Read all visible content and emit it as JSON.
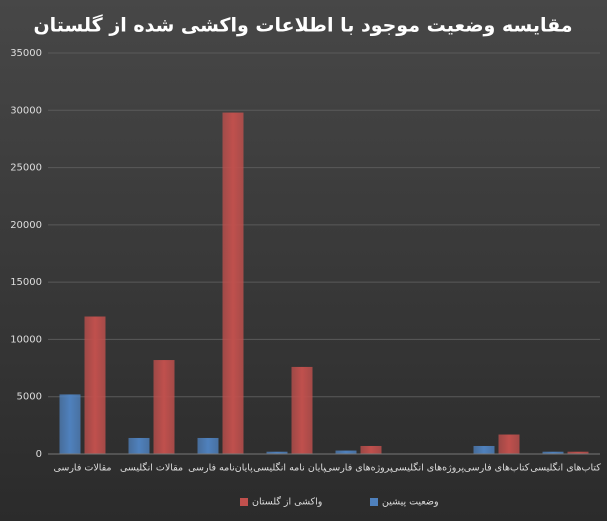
{
  "chart_data": {
    "type": "bar",
    "title": "مقایسه وضعیت موجود با اطلاعات واکشی شده از گلستان",
    "categories": [
      "مقالات فارسی",
      "مقالات انگلیسی",
      "پایان‌نامه فارسی",
      "پایان نامه انگلیسی",
      "پروژه‌های فارسی",
      "پروژه‌های انگلیسی",
      "کتاب‌های فارسی",
      "کتاب‌های انگلیسی"
    ],
    "series": [
      {
        "name": "وضعیت پیشین",
        "color": "#4f81bd",
        "values": [
          5200,
          1400,
          1400,
          200,
          300,
          0,
          700,
          200
        ]
      },
      {
        "name": "واکشی از گلستان",
        "color": "#c0504d",
        "values": [
          12000,
          8200,
          29800,
          7600,
          700,
          0,
          1700,
          200
        ]
      }
    ],
    "ylim": [
      0,
      35000
    ],
    "yticks": [
      0,
      5000,
      10000,
      15000,
      20000,
      25000,
      30000,
      35000
    ],
    "grid": true,
    "legend": "bottom"
  }
}
